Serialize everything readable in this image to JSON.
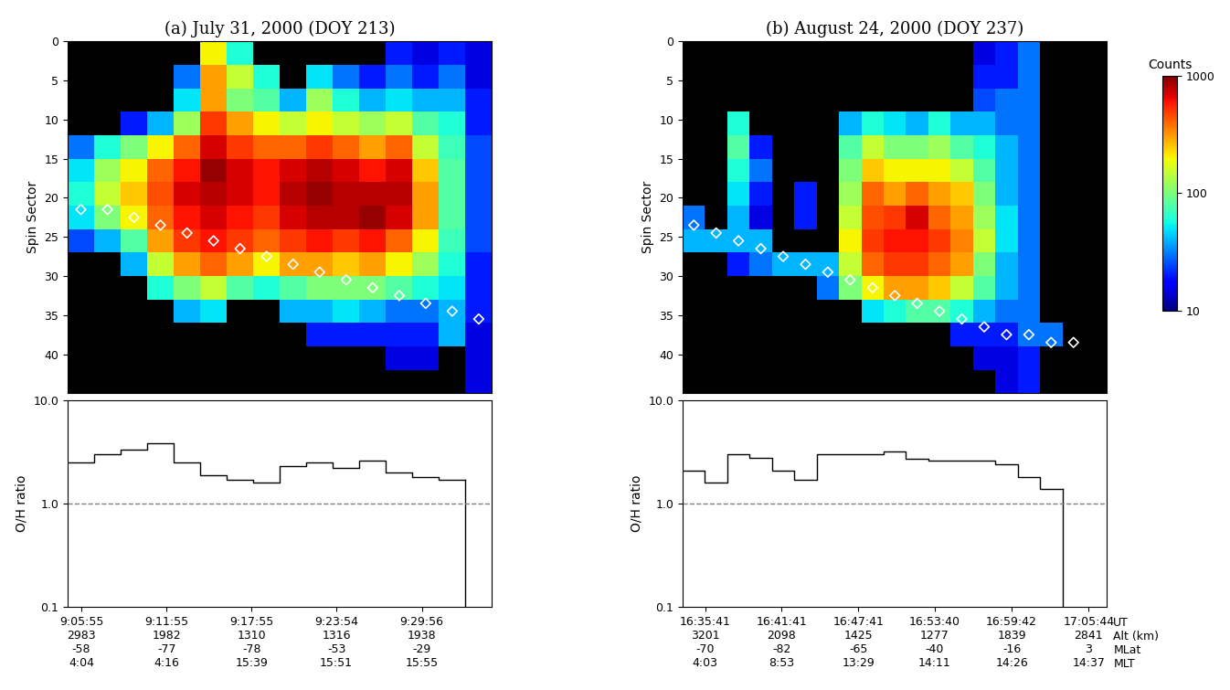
{
  "colorbar": {
    "label": "Counts",
    "range": [
      10,
      1000
    ],
    "ticks": [
      10,
      100,
      1000
    ],
    "log": true
  },
  "chart_data": [
    {
      "type": "heatmap",
      "title": "(a) July 31, 2000 (DOY 213)",
      "ylabel": "Spin Sector",
      "x_edges": [
        4.95,
        6.82,
        8.69,
        10.56,
        12.43,
        14.3,
        16.17,
        18.04,
        19.91,
        21.78,
        23.65,
        25.52,
        27.39,
        29.26,
        31.13,
        33.0,
        34.87
      ],
      "y_edges": [
        0,
        3,
        6,
        9,
        12,
        15,
        18,
        21,
        24,
        27,
        30,
        33,
        36,
        39,
        42,
        45
      ],
      "xlim": [
        4.95,
        34.87
      ],
      "ylim": [
        45,
        0
      ],
      "yticks": [
        0,
        5,
        10,
        15,
        20,
        25,
        30,
        35,
        40
      ],
      "tick_labels": "y",
      "cells": [
        [
          null,
          null,
          null,
          null,
          null,
          200,
          60,
          null,
          null,
          null,
          null,
          null,
          20,
          15,
          20,
          15
        ],
        [
          null,
          null,
          null,
          null,
          30,
          300,
          150,
          60,
          null,
          50,
          30,
          20,
          30,
          20,
          30,
          15
        ],
        [
          null,
          null,
          null,
          null,
          50,
          300,
          100,
          80,
          40,
          120,
          60,
          40,
          50,
          40,
          40,
          20
        ],
        [
          null,
          null,
          20,
          40,
          120,
          500,
          300,
          200,
          150,
          200,
          150,
          120,
          150,
          80,
          60,
          20
        ],
        [
          30,
          60,
          100,
          200,
          400,
          700,
          500,
          400,
          400,
          500,
          400,
          300,
          400,
          150,
          70,
          25
        ],
        [
          50,
          120,
          200,
          400,
          600,
          900,
          700,
          600,
          700,
          800,
          700,
          600,
          700,
          250,
          80,
          25
        ],
        [
          60,
          150,
          250,
          450,
          700,
          800,
          700,
          600,
          800,
          900,
          800,
          800,
          800,
          300,
          80,
          25
        ],
        [
          50,
          100,
          200,
          400,
          600,
          700,
          600,
          500,
          700,
          800,
          800,
          900,
          700,
          300,
          80,
          25
        ],
        [
          25,
          40,
          80,
          300,
          500,
          600,
          500,
          400,
          500,
          600,
          500,
          600,
          400,
          200,
          70,
          25
        ],
        [
          null,
          null,
          40,
          150,
          300,
          400,
          300,
          200,
          300,
          300,
          250,
          300,
          200,
          120,
          60,
          20
        ],
        [
          null,
          null,
          null,
          60,
          100,
          150,
          80,
          60,
          80,
          100,
          100,
          100,
          80,
          60,
          50,
          20
        ],
        [
          null,
          null,
          null,
          null,
          40,
          50,
          null,
          null,
          40,
          40,
          50,
          40,
          30,
          30,
          40,
          20
        ],
        [
          null,
          null,
          null,
          null,
          null,
          null,
          null,
          null,
          null,
          20,
          20,
          20,
          20,
          20,
          40,
          15
        ],
        [
          null,
          null,
          null,
          null,
          null,
          null,
          null,
          null,
          null,
          null,
          null,
          null,
          15,
          15,
          null,
          15
        ],
        [
          null,
          null,
          null,
          null,
          null,
          null,
          null,
          null,
          null,
          null,
          null,
          null,
          null,
          null,
          null,
          15
        ]
      ],
      "marker_sector": [
        21.5,
        21.5,
        22.5,
        23.5,
        24.5,
        25.5,
        26.5,
        27.5,
        28.5,
        29.5,
        30.5,
        31.5,
        32.5,
        33.5,
        34.5,
        35.5
      ],
      "marker": "D",
      "color": "#ffffff"
    },
    {
      "type": "line",
      "ylabel": "O/H ratio",
      "log": "y",
      "line_style": "steps",
      "x_edges": [
        4.95,
        6.82,
        8.69,
        10.56,
        12.43,
        14.3,
        16.17,
        18.04,
        19.91,
        21.78,
        23.65,
        25.52,
        27.39,
        29.26,
        31.13,
        33.0,
        34.87
      ],
      "values": [
        2.5,
        3.0,
        3.3,
        3.8,
        2.5,
        1.9,
        1.7,
        1.6,
        2.3,
        2.5,
        2.2,
        2.6,
        2.0,
        1.8,
        1.7,
        null
      ],
      "color": "#000000",
      "reference_line": 1.0,
      "xlim": [
        4.95,
        34.87
      ],
      "ylim": [
        0.1,
        10
      ],
      "yticks": [
        0.1,
        {
          "value": 1,
          "label": "1.0"
        },
        {
          "value": 10,
          "label": "10.0"
        }
      ],
      "xticks": [
        {
          "value": 5.92,
          "label": "9:05:55\n2983\n-58\n4:04"
        },
        {
          "value": 11.92,
          "label": "9:11:55\n1982\n-77\n4:16"
        },
        {
          "value": 17.92,
          "label": "9:17:55\n1310\n-78\n15:39"
        },
        {
          "value": 23.9,
          "label": "9:23:54\n1316\n-53\n15:51"
        },
        {
          "value": 29.93,
          "label": "9:29:56\n1938\n-29\n15:55"
        }
      ]
    },
    {
      "type": "heatmap",
      "title": "(b) August 24, 2000 (DOY 237)",
      "ylabel": "Spin Sector",
      "x_edges": [
        3.92,
        5.67,
        7.42,
        9.17,
        10.92,
        12.67,
        14.42,
        16.17,
        17.92,
        19.67,
        21.42,
        23.17,
        24.92,
        26.67,
        28.42,
        30.17,
        31.92,
        33.67,
        35.42,
        37.17
      ],
      "y_edges": [
        0,
        3,
        6,
        9,
        12,
        15,
        18,
        21,
        24,
        27,
        30,
        33,
        36,
        39,
        42,
        45
      ],
      "xlim": [
        3.92,
        37.17
      ],
      "ylim": [
        45,
        0
      ],
      "yticks": [
        0,
        5,
        10,
        15,
        20,
        25,
        30,
        35,
        40
      ],
      "tick_labels": "y",
      "cells": [
        [
          null,
          null,
          null,
          null,
          null,
          null,
          null,
          null,
          null,
          null,
          null,
          null,
          null,
          15,
          20,
          30,
          null,
          null,
          null
        ],
        [
          null,
          null,
          null,
          null,
          null,
          null,
          null,
          null,
          null,
          null,
          null,
          null,
          null,
          20,
          20,
          30,
          null,
          null,
          null
        ],
        [
          null,
          null,
          null,
          null,
          null,
          null,
          null,
          null,
          null,
          null,
          null,
          null,
          null,
          25,
          30,
          30,
          null,
          null,
          null
        ],
        [
          null,
          null,
          60,
          null,
          null,
          null,
          null,
          40,
          60,
          50,
          40,
          60,
          40,
          40,
          30,
          30,
          null,
          null,
          null
        ],
        [
          null,
          null,
          80,
          20,
          null,
          null,
          null,
          80,
          150,
          100,
          100,
          120,
          80,
          60,
          40,
          30,
          null,
          null,
          null
        ],
        [
          null,
          null,
          60,
          30,
          null,
          null,
          null,
          100,
          250,
          200,
          200,
          200,
          150,
          80,
          40,
          30,
          null,
          null,
          null
        ],
        [
          null,
          null,
          50,
          20,
          null,
          20,
          null,
          120,
          400,
          300,
          400,
          300,
          250,
          100,
          40,
          30,
          null,
          null,
          null
        ],
        [
          30,
          null,
          40,
          15,
          null,
          20,
          null,
          150,
          450,
          500,
          700,
          400,
          300,
          120,
          50,
          30,
          null,
          null,
          null
        ],
        [
          40,
          40,
          40,
          40,
          null,
          null,
          null,
          200,
          500,
          600,
          600,
          500,
          350,
          150,
          50,
          30,
          null,
          null,
          null
        ],
        [
          null,
          null,
          20,
          30,
          40,
          40,
          40,
          150,
          400,
          500,
          500,
          400,
          300,
          100,
          40,
          30,
          null,
          null,
          null
        ],
        [
          null,
          null,
          null,
          null,
          null,
          null,
          30,
          100,
          200,
          300,
          300,
          250,
          150,
          80,
          40,
          30,
          null,
          null,
          null
        ],
        [
          null,
          null,
          null,
          null,
          null,
          null,
          null,
          null,
          50,
          60,
          80,
          80,
          60,
          40,
          30,
          30,
          null,
          null,
          null
        ],
        [
          null,
          null,
          null,
          null,
          null,
          null,
          null,
          null,
          null,
          null,
          null,
          null,
          20,
          20,
          20,
          30,
          30,
          null,
          null
        ],
        [
          null,
          null,
          null,
          null,
          null,
          null,
          null,
          null,
          null,
          null,
          null,
          null,
          null,
          15,
          15,
          20,
          null,
          null,
          null
        ],
        [
          null,
          null,
          null,
          null,
          null,
          null,
          null,
          null,
          null,
          null,
          null,
          null,
          null,
          null,
          15,
          20,
          null,
          null,
          null
        ]
      ],
      "marker_sector": [
        23.5,
        24.5,
        25.5,
        26.5,
        27.5,
        28.5,
        29.5,
        30.5,
        31.5,
        32.5,
        33.5,
        34.5,
        35.5,
        36.5,
        37.5,
        37.5,
        38.5,
        38.5,
        null
      ],
      "marker": "D",
      "color": "#ffffff"
    },
    {
      "type": "line",
      "ylabel": "O/H ratio",
      "log": "y",
      "line_style": "steps",
      "x_edges": [
        3.92,
        5.67,
        7.42,
        9.17,
        10.92,
        12.67,
        14.42,
        16.17,
        17.92,
        19.67,
        21.42,
        23.17,
        24.92,
        26.67,
        28.42,
        30.17,
        31.92,
        33.67,
        35.42,
        37.17
      ],
      "values": [
        2.1,
        1.6,
        3.0,
        2.8,
        2.1,
        1.7,
        3.0,
        3.0,
        3.0,
        3.2,
        2.7,
        2.6,
        2.6,
        2.6,
        2.4,
        1.8,
        1.4,
        null,
        null
      ],
      "color": "#000000",
      "reference_line": 1.0,
      "xlim": [
        3.92,
        37.17
      ],
      "ylim": [
        0.1,
        10
      ],
      "yticks": [
        0.1,
        {
          "value": 1,
          "label": "1.0"
        },
        {
          "value": 10,
          "label": "10.0"
        }
      ],
      "xticks": [
        {
          "value": 5.68,
          "label": "16:35:41\n3201\n-70\n4:03"
        },
        {
          "value": 11.68,
          "label": "16:41:41\n2098\n-82\n8:53"
        },
        {
          "value": 17.68,
          "label": "16:47:41\n1425\n-65\n13:29"
        },
        {
          "value": 23.67,
          "label": "16:53:40\n1277\n-40\n14:11"
        },
        {
          "value": 29.7,
          "label": "16:59:42\n1839\n-16\n14:26"
        },
        {
          "value": 35.73,
          "label": "17:05:44\n2841\n3\n14:37"
        }
      ],
      "row_labels": [
        "UT",
        "Alt (km)",
        "MLat",
        "MLT"
      ]
    }
  ]
}
